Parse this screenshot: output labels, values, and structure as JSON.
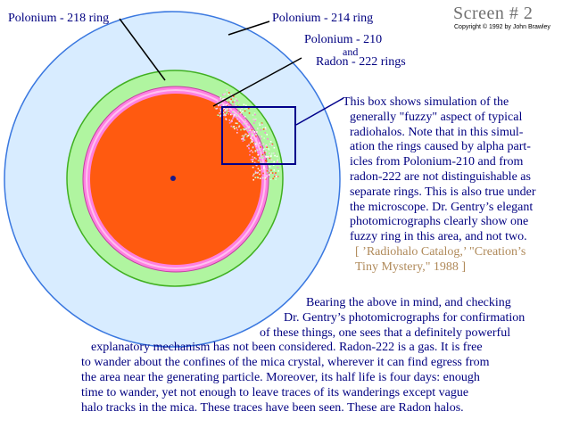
{
  "header": {
    "title": "Screen # 2",
    "copyright": "Copyright © 1992 by John Brawley"
  },
  "labels": {
    "po218": "Polonium - 218 ring",
    "po214": "Polonium - 214 ring",
    "po210_line1": "Polonium - 210",
    "po210_line2": "and",
    "po210_line3": "Radon - 222 rings"
  },
  "sidebar_text": {
    "lines": [
      "This box shows simulation of the",
      "generally \"fuzzy\" aspect of typical",
      "radiohalos.  Note that in this simul-",
      "ation the rings caused by alpha part-",
      "icles from Polonium-210  and from",
      "radon-222 are not distinguishable as",
      "separate rings.  This is also true under",
      "the microscope.  Dr. Gentry’s elegant",
      "photomicrographs clearly show one",
      "fuzzy ring in this area, and not two."
    ],
    "citation_lines": [
      "[ ’Radiohalo Catalog,’ \"Creation’s",
      "Tiny Mystery,\" 1988 ]"
    ]
  },
  "bottom_text": {
    "lines": [
      "Bearing the above in mind, and checking",
      "Dr. Gentry’s photomicrographs for confirmation",
      "of these things, one sees that a definitely powerful",
      "explanatory mechanism has not been considered.  Radon-222 is a gas.  It is free",
      "to wander about the confines of the mica crystal, wherever it can find egress from",
      "the area near the generating particle.  Moreover, its half life is four days: enough",
      "time to wander, yet not enough to leave traces of its wanderings except vague",
      "halo tracks in the mica.  These traces have been seen.  These are Radon halos."
    ]
  },
  "colors": {
    "outer_ring": "#d8ecff",
    "outer_border": "#3a78e0",
    "green_ring": "#b0f5a0",
    "green_border": "#40b020",
    "pink_ring": "#ff80e0",
    "core": "#ff5a10",
    "box_border": "#00008b",
    "text": "#000080",
    "citation": "#b08a5a"
  }
}
